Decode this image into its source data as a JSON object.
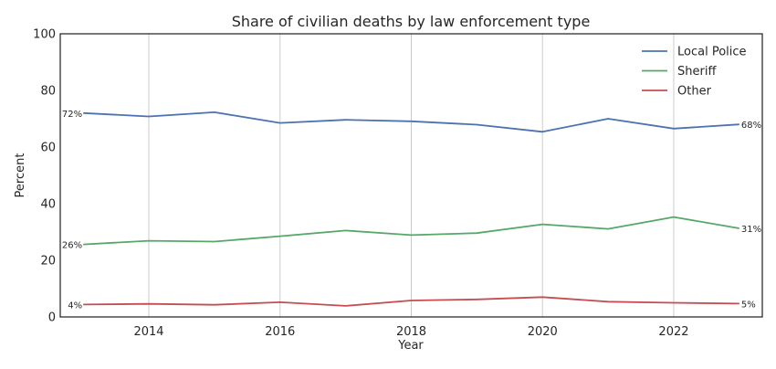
{
  "chart_data": {
    "type": "line",
    "title": "Share of civilian deaths by law enforcement type",
    "xlabel": "Year",
    "ylabel": "Percent",
    "x": [
      2013,
      2014,
      2015,
      2016,
      2017,
      2018,
      2019,
      2020,
      2021,
      2022,
      2023
    ],
    "xlim": [
      2012.65,
      2023.35
    ],
    "ylim": [
      0,
      100
    ],
    "xticks": [
      2014,
      2016,
      2018,
      2020,
      2022
    ],
    "yticks": [
      0,
      20,
      40,
      60,
      80,
      100
    ],
    "grid": "vertical",
    "legend": "top-right",
    "series": [
      {
        "name": "Local Police",
        "color": "#4c72b0",
        "values": [
          72.0,
          70.8,
          72.3,
          68.5,
          69.6,
          69.1,
          67.9,
          65.4,
          70.0,
          66.5,
          68.0
        ],
        "start_label": "72%",
        "end_label": "68%"
      },
      {
        "name": "Sheriff",
        "color": "#55a868",
        "values": [
          25.6,
          26.9,
          26.6,
          28.5,
          30.5,
          28.9,
          29.6,
          32.7,
          31.1,
          35.3,
          31.3
        ],
        "start_label": "26%",
        "end_label": "31%"
      },
      {
        "name": "Other",
        "color": "#c44e52",
        "values": [
          4.4,
          4.6,
          4.3,
          5.2,
          3.9,
          5.8,
          6.2,
          7.0,
          5.4,
          5.0,
          4.7
        ],
        "start_label": "4%",
        "end_label": "5%"
      }
    ]
  }
}
